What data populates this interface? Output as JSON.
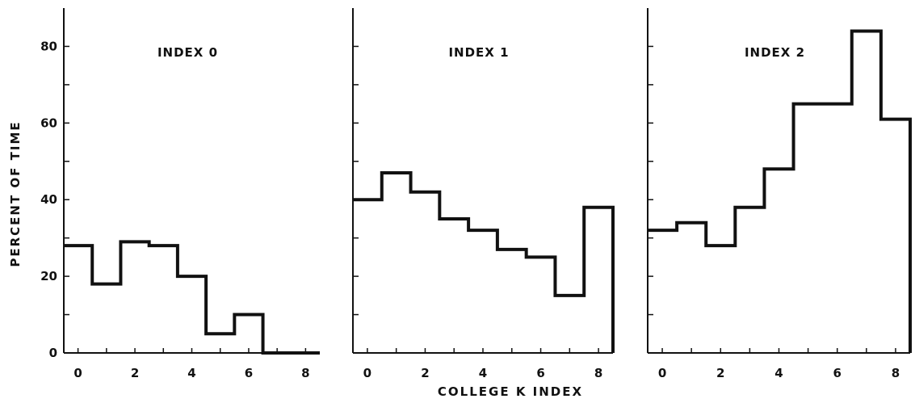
{
  "chart_data": {
    "type": "bar",
    "layout": "three panels side by side, shared y-axis",
    "ylabel": "PERCENT OF TIME",
    "xlabel": "COLLEGE K INDEX",
    "ylim": [
      0,
      90
    ],
    "xlim": [
      -0.5,
      8.5
    ],
    "y_ticks": [
      0,
      20,
      40,
      60,
      80
    ],
    "x_ticks": [
      0,
      2,
      4,
      6,
      8
    ],
    "x_tick_labels": [
      "0",
      "2",
      "4",
      "6",
      "8"
    ],
    "y_tick_labels": [
      "0",
      "20",
      "40",
      "60",
      "80"
    ],
    "categories": [
      0,
      1,
      2,
      3,
      4,
      5,
      6,
      7,
      8
    ],
    "style": "step histogram",
    "grid": false,
    "panels": [
      {
        "title": "INDEX 0",
        "values": [
          28,
          18,
          29,
          28,
          20,
          5,
          10,
          0,
          0
        ]
      },
      {
        "title": "INDEX 1",
        "values": [
          40,
          47,
          42,
          35,
          32,
          27,
          25,
          15,
          38
        ]
      },
      {
        "title": "INDEX 2",
        "values": [
          32,
          34,
          28,
          38,
          48,
          65,
          65,
          84,
          61
        ]
      }
    ]
  }
}
